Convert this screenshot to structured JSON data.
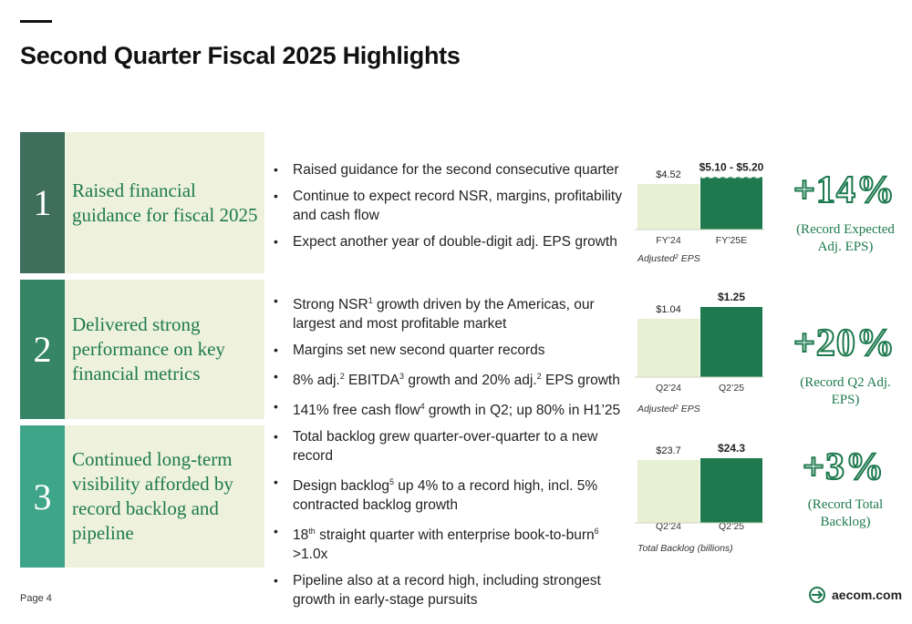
{
  "title": "Second Quarter Fiscal 2025 Highlights",
  "colors": {
    "green": "#1e7a4e",
    "light_green": "#e8f0d4",
    "num1": "#3f6e5c",
    "num2": "#368567",
    "num3": "#3fa589"
  },
  "rows": [
    {
      "number": "1",
      "heading": "Raised financial guidance for fiscal 2025",
      "bullets": [
        "Raised guidance for the second consecutive quarter",
        "Continue to expect record NSR, margins, profitability and cash flow",
        "Expect another year of double-digit adj. EPS growth"
      ],
      "big_number": "+14%",
      "big_note": "(Record Expected Adj. EPS)"
    },
    {
      "number": "2",
      "heading": "Delivered strong performance on key financial metrics",
      "bullets": [
        "Strong NSR",
        "Margins set new second quarter records",
        "8% adj.",
        "141% free cash flow"
      ],
      "bullet_parts": {
        "b1_sup": "1",
        "b1_rest": " growth driven by the Americas, our largest and most profitable market",
        "b3_sup1": "2",
        "b3_mid": " EBITDA",
        "b3_sup2": "3",
        "b3_mid2": " growth and 20% adj.",
        "b3_sup3": "2",
        "b3_rest": " EPS growth",
        "b4_sup": "4",
        "b4_rest": " growth in Q2; up 80% in H1’25"
      },
      "big_number": "+20%",
      "big_note": "(Record Q2 Adj. EPS)"
    },
    {
      "number": "3",
      "heading": "Continued long-term visibility afforded by record backlog and pipeline",
      "bullets": [
        "Total backlog grew quarter-over-quarter to a new record",
        "Design backlog",
        "18",
        "Pipeline also at a record high, including strongest growth in early-stage pursuits"
      ],
      "bullet_parts": {
        "b2_sup": "5",
        "b2_rest": " up 4% to a record high, incl. 5% contracted backlog growth",
        "b3_sup": "th",
        "b3_mid": " straight quarter with enterprise book-to-burn",
        "b3_sup2": "6",
        "b3_rest": " >1.0x"
      },
      "big_number": "+3%",
      "big_note": "(Record Total Backlog)"
    }
  ],
  "chart_data": [
    {
      "type": "bar",
      "categories": [
        "FY’24",
        "FY’25E"
      ],
      "values": [
        4.52,
        5.2
      ],
      "range_low": 5.1,
      "data_labels": [
        "$4.52",
        "$5.10 - $5.20"
      ],
      "caption": "Adjusted",
      "caption_sup": "2",
      "caption_rest": " EPS",
      "ylim": [
        0,
        5.6
      ]
    },
    {
      "type": "bar",
      "categories": [
        "Q2’24",
        "Q2’25"
      ],
      "values": [
        1.04,
        1.25
      ],
      "data_labels": [
        "$1.04",
        "$1.25"
      ],
      "caption": "Adjusted",
      "caption_sup": "2",
      "caption_rest": " EPS",
      "ylim": [
        0,
        1.25
      ]
    },
    {
      "type": "bar",
      "categories": [
        "Q2’24",
        "Q2’25"
      ],
      "values": [
        23.7,
        24.3
      ],
      "data_labels": [
        "$23.7",
        "$24.3"
      ],
      "caption": "Total Backlog (billions)",
      "caption_sup": "",
      "caption_rest": "",
      "ylim": [
        0,
        24.3
      ]
    }
  ],
  "footer": {
    "page": "Page 4",
    "logo": "aecom.com"
  }
}
